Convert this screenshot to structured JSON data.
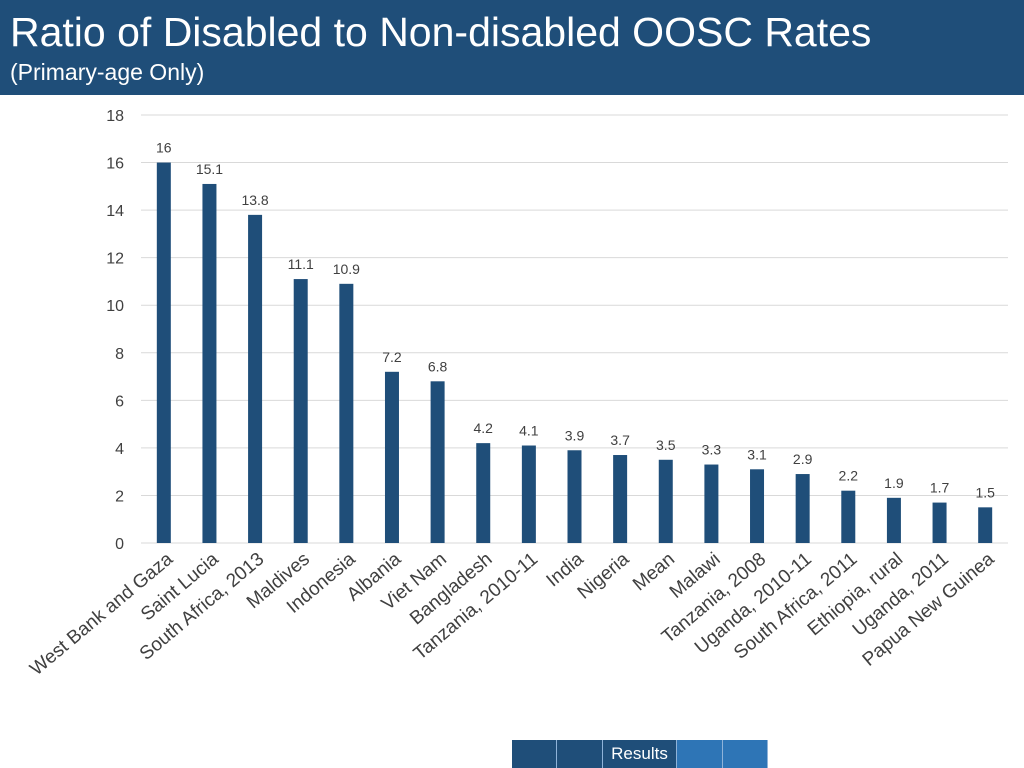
{
  "header": {
    "title": "Ratio of Disabled to Non-disabled OOSC Rates",
    "subtitle": "(Primary-age Only)"
  },
  "nav": {
    "results_label": "Results"
  },
  "colors": {
    "header_bg": "#1f4e79",
    "bar": "#1f4e79",
    "grid": "#d9d9d9",
    "text": "#404040"
  },
  "chart_data": {
    "type": "bar",
    "title": "",
    "xlabel": "",
    "ylabel": "",
    "ylim": [
      0,
      18
    ],
    "yticks": [
      0,
      2,
      4,
      6,
      8,
      10,
      12,
      14,
      16,
      18
    ],
    "grid": true,
    "legend": "none",
    "categories": [
      "West Bank and Gaza",
      "Saint Lucia",
      "South Africa, 2013",
      "Maldives",
      "Indonesia",
      "Albania",
      "Viet Nam",
      "Bangladesh",
      "Tanzania, 2010-11",
      "India",
      "Nigeria",
      "Mean",
      "Malawi",
      "Tanzania, 2008",
      "Uganda, 2010-11",
      "South Africa, 2011",
      "Ethiopia, rural",
      "Uganda, 2011",
      "Papua New Guinea"
    ],
    "values": [
      16,
      15.1,
      13.8,
      11.1,
      10.9,
      7.2,
      6.8,
      4.2,
      4.1,
      3.9,
      3.7,
      3.5,
      3.3,
      3.1,
      2.9,
      2.2,
      1.9,
      1.7,
      1.5
    ],
    "data_labels": [
      "16",
      "15.1",
      "13.8",
      "11.1",
      "10.9",
      "7.2",
      "6.8",
      "4.2",
      "4.1",
      "3.9",
      "3.7",
      "3.5",
      "3.3",
      "3.1",
      "2.9",
      "2.2",
      "1.9",
      "1.7",
      "1.5"
    ]
  }
}
